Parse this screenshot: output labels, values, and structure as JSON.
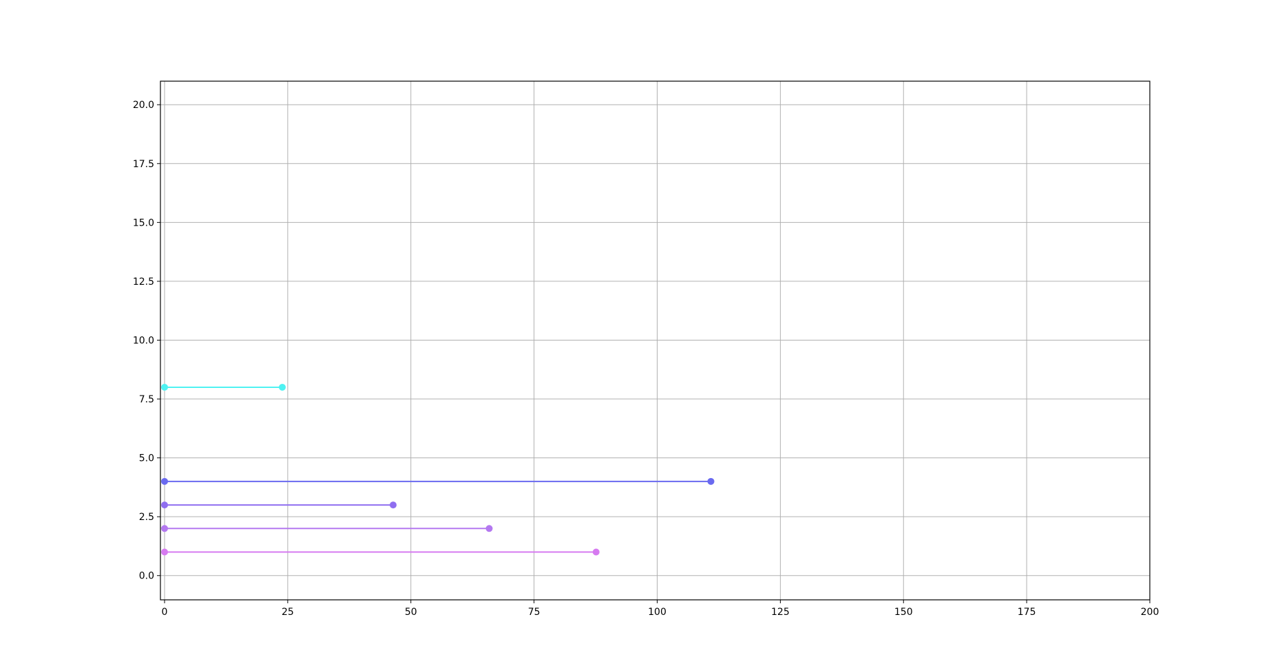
{
  "chart_data": {
    "type": "line",
    "title": "",
    "xlabel": "",
    "ylabel": "",
    "xlim": [
      -0.84,
      200
    ],
    "ylim": [
      -1.03,
      21
    ],
    "grid": true,
    "x_ticks": [
      "0",
      "25",
      "50",
      "75",
      "100",
      "125",
      "150",
      "175",
      "200"
    ],
    "y_ticks": [
      "0.0",
      "2.5",
      "5.0",
      "7.5",
      "10.0",
      "12.5",
      "15.0",
      "17.5",
      "20.0"
    ],
    "series": [
      {
        "x": [
          0,
          87.6
        ],
        "y": [
          1,
          1
        ],
        "color": "#d67af0"
      },
      {
        "x": [
          0,
          65.9
        ],
        "y": [
          2,
          2
        ],
        "color": "#b478f0"
      },
      {
        "x": [
          0,
          46.4
        ],
        "y": [
          3,
          3
        ],
        "color": "#8f6ef0"
      },
      {
        "x": [
          0,
          110.9
        ],
        "y": [
          4,
          4
        ],
        "color": "#6a6af0"
      },
      {
        "x": [
          0,
          23.9
        ],
        "y": [
          8,
          8
        ],
        "color": "#4ef2f2"
      }
    ]
  }
}
